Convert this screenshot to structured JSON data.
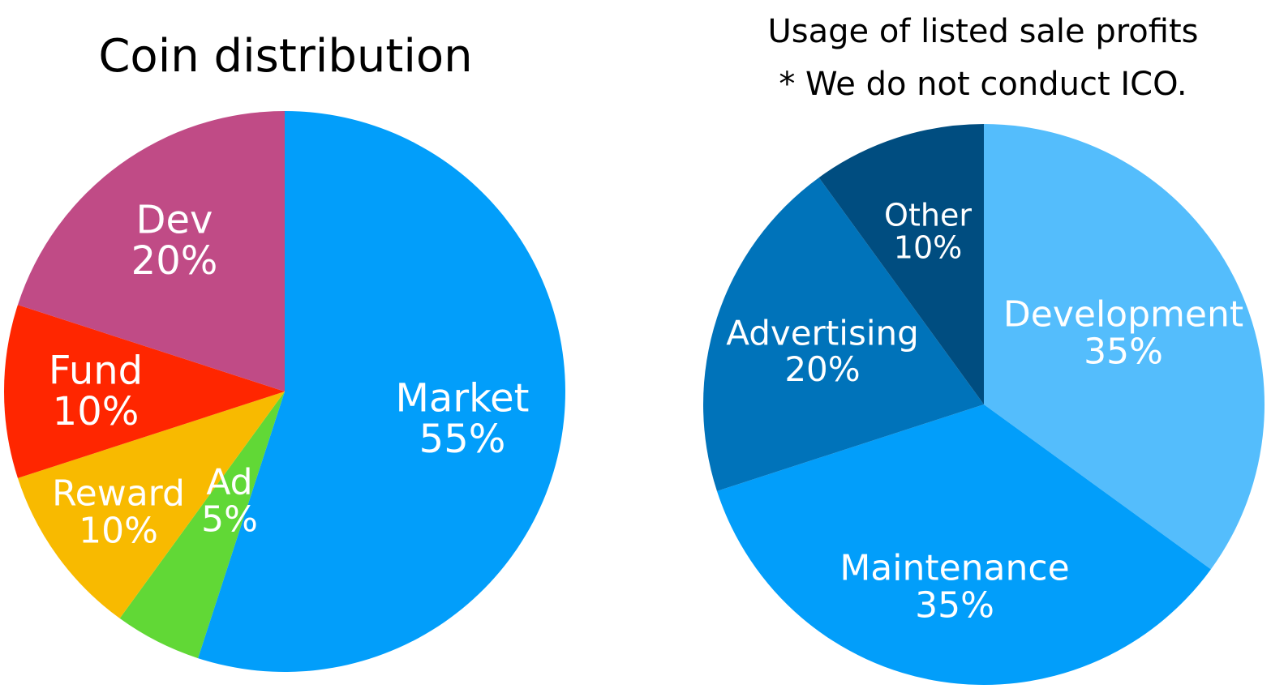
{
  "chart_data": [
    {
      "type": "pie",
      "title": "Coin distribution",
      "subtitle": "",
      "slices": [
        {
          "label": "Market",
          "value": 55,
          "value_text": "55%",
          "color": "#029EFA"
        },
        {
          "label": "Ad",
          "value": 5,
          "value_text": "5%",
          "color": "#61D836"
        },
        {
          "label": "Reward",
          "value": 10,
          "value_text": "10%",
          "color": "#F8BA00"
        },
        {
          "label": "Fund",
          "value": 10,
          "value_text": "10%",
          "color": "#FF2600"
        },
        {
          "label": "Dev",
          "value": 20,
          "value_text": "20%",
          "color": "#C04B86"
        }
      ]
    },
    {
      "type": "pie",
      "title": "Usage of listed sale profits",
      "subtitle": "* We do not conduct ICO.",
      "slices": [
        {
          "label": "Development",
          "value": 35,
          "value_text": "35%",
          "color": "#54BDFC"
        },
        {
          "label": "Maintenance",
          "value": 35,
          "value_text": "35%",
          "color": "#029EFA"
        },
        {
          "label": "Advertising",
          "value": 20,
          "value_text": "20%",
          "color": "#0073BA"
        },
        {
          "label": "Other",
          "value": 10,
          "value_text": "10%",
          "color": "#004D80"
        }
      ]
    }
  ]
}
